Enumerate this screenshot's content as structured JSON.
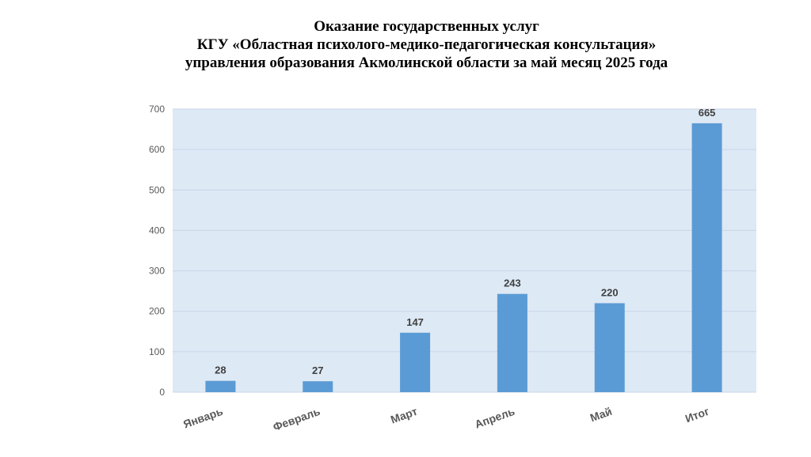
{
  "title_lines": [
    "Оказание государственных услуг",
    "КГУ «Областная психолого-медико-педагогическая консультация»",
    "управления образования Акмолинской области за май месяц 2025 года"
  ],
  "colors": {
    "bar": "#5b9bd5",
    "plot_bg": "#dde9f5",
    "grid": "#c9d6e6"
  },
  "chart_data": {
    "type": "bar",
    "title": "Оказание государственных услуг КГУ «Областная психолого-медико-педагогическая консультация» управления образования Акмолинской области за май месяц 2025 года",
    "categories": [
      "Январь",
      "Февраль",
      "Март",
      "Апрель",
      "Май",
      "Итог"
    ],
    "values": [
      28,
      27,
      147,
      243,
      220,
      665
    ],
    "ylim": [
      0,
      700
    ],
    "yticks": [
      0,
      100,
      200,
      300,
      400,
      500,
      600,
      700
    ],
    "grid": true,
    "legend": "none",
    "data_labels": true
  }
}
